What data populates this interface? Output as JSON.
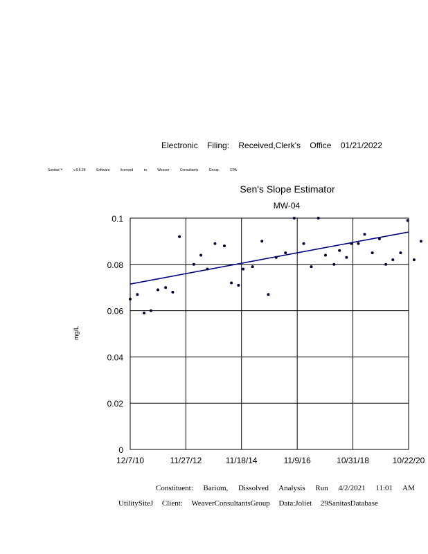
{
  "header": {
    "filing_text": "Electronic Filing: Received,Clerk's Office 01/21/2022",
    "license_text": "Sanitas™ v.9.6.28 Software licensed to Weaver Consultants Group. EPA"
  },
  "chart_data": {
    "type": "scatter",
    "title": "Sen's Slope Estimator",
    "subtitle": "MW-04",
    "xlabel": "",
    "ylabel": "mg/L",
    "ylim": [
      0,
      0.1
    ],
    "y_ticks": [
      "0",
      "0.02",
      "0.04",
      "0.06",
      "0.08",
      "0.1"
    ],
    "x_ticks": [
      "12/7/10",
      "11/27/12",
      "11/18/14",
      "11/9/16",
      "10/31/18",
      "10/22/20"
    ],
    "x_tick_dates": [
      "2010-12-07",
      "2012-11-27",
      "2014-11-18",
      "2016-11-09",
      "2018-10-31",
      "2020-10-22"
    ],
    "xlim": [
      "2010-12-07",
      "2020-10-22"
    ],
    "grid": true,
    "legend": "none",
    "colors": {
      "points": "#000033",
      "trend": "#000080",
      "grid": "#000000"
    },
    "points": [
      {
        "x": "2010-12-07",
        "y": 0.065
      },
      {
        "x": "2011-03-10",
        "y": 0.067
      },
      {
        "x": "2011-06-05",
        "y": 0.059
      },
      {
        "x": "2011-09-01",
        "y": 0.06
      },
      {
        "x": "2011-12-01",
        "y": 0.069
      },
      {
        "x": "2012-03-10",
        "y": 0.07
      },
      {
        "x": "2012-06-10",
        "y": 0.068
      },
      {
        "x": "2012-09-05",
        "y": 0.092
      },
      {
        "x": "2013-03-10",
        "y": 0.08
      },
      {
        "x": "2013-06-10",
        "y": 0.084
      },
      {
        "x": "2013-09-01",
        "y": 0.078
      },
      {
        "x": "2013-12-10",
        "y": 0.089
      },
      {
        "x": "2014-04-10",
        "y": 0.088
      },
      {
        "x": "2014-07-10",
        "y": 0.072
      },
      {
        "x": "2014-10-10",
        "y": 0.071
      },
      {
        "x": "2014-12-10",
        "y": 0.078
      },
      {
        "x": "2015-04-10",
        "y": 0.079
      },
      {
        "x": "2015-08-10",
        "y": 0.09
      },
      {
        "x": "2015-11-01",
        "y": 0.067
      },
      {
        "x": "2016-02-10",
        "y": 0.083
      },
      {
        "x": "2016-06-10",
        "y": 0.085
      },
      {
        "x": "2016-10-01",
        "y": 0.1
      },
      {
        "x": "2017-02-01",
        "y": 0.089
      },
      {
        "x": "2017-05-10",
        "y": 0.079
      },
      {
        "x": "2017-08-10",
        "y": 0.1
      },
      {
        "x": "2017-11-10",
        "y": 0.084
      },
      {
        "x": "2018-03-01",
        "y": 0.08
      },
      {
        "x": "2018-05-10",
        "y": 0.086
      },
      {
        "x": "2018-08-10",
        "y": 0.083
      },
      {
        "x": "2018-10-10",
        "y": 0.089
      },
      {
        "x": "2019-01-10",
        "y": 0.089
      },
      {
        "x": "2019-04-01",
        "y": 0.093
      },
      {
        "x": "2019-07-10",
        "y": 0.085
      },
      {
        "x": "2019-10-10",
        "y": 0.091
      },
      {
        "x": "2020-01-01",
        "y": 0.08
      },
      {
        "x": "2020-04-01",
        "y": 0.082
      },
      {
        "x": "2020-07-10",
        "y": 0.085
      },
      {
        "x": "2020-10-10",
        "y": 0.099
      },
      {
        "x": "2021-01-01",
        "y": 0.082
      },
      {
        "x": "2021-04-01",
        "y": 0.09
      }
    ],
    "trend": {
      "start": {
        "x": "2010-12-07",
        "y": 0.0715
      },
      "end": {
        "x": "2021-04-02",
        "y": 0.094
      }
    }
  },
  "footer": {
    "line1": "Constituent: Barium, Dissolved Analysis Run 4/2/2021 11:01 AM",
    "line2": "UtilitySiteJ Client: WeaverConsultantsGroup Data:Joliet 29SanitasDatabase"
  }
}
